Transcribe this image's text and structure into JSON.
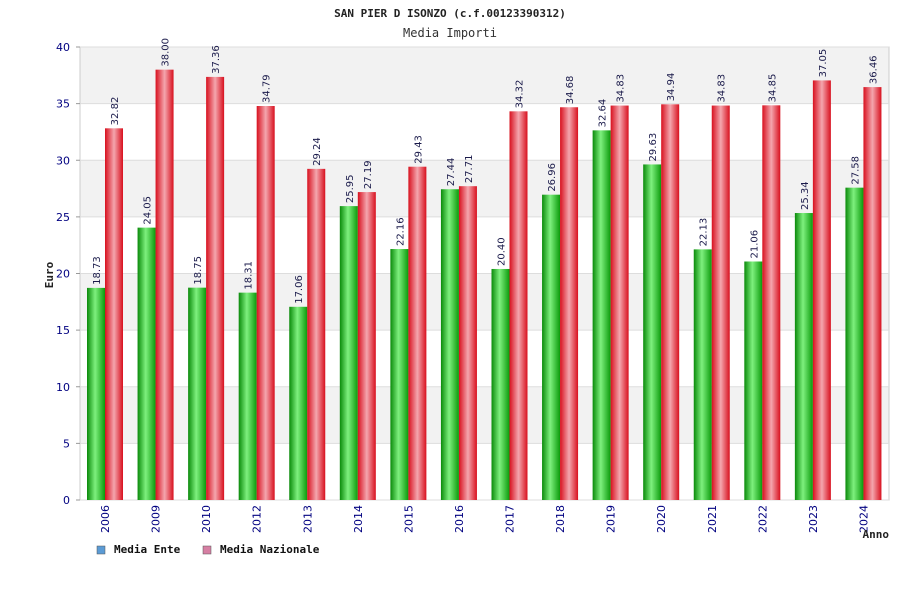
{
  "chart_data": {
    "type": "bar",
    "title": "SAN PIER D ISONZO (c.f.00123390312)",
    "subtitle": "Media Importi",
    "xlabel": "Anno",
    "ylabel": "Euro",
    "ylim": [
      0,
      40
    ],
    "yticks": [
      0,
      5,
      10,
      15,
      20,
      25,
      30,
      35,
      40
    ],
    "grid": true,
    "legend_position": "bottom-left",
    "categories": [
      "2006",
      "2009",
      "2010",
      "2012",
      "2013",
      "2014",
      "2015",
      "2016",
      "2017",
      "2018",
      "2019",
      "2020",
      "2021",
      "2022",
      "2023",
      "2024"
    ],
    "series": [
      {
        "name": "Media Ente",
        "color": "#22bb22",
        "legend_color": "#5b9bd5",
        "values": [
          18.73,
          24.05,
          18.75,
          18.31,
          17.06,
          25.95,
          22.16,
          27.44,
          20.4,
          26.96,
          32.64,
          29.63,
          22.13,
          21.06,
          25.34,
          27.58
        ],
        "labels": [
          "18.73",
          "24.05",
          "18.75",
          "18.31",
          "17.06",
          "25.95",
          "22.16",
          "27.44",
          "20.40",
          "26.96",
          "32.64",
          "29.63",
          "22.13",
          "21.06",
          "25.34",
          "27.58"
        ]
      },
      {
        "name": "Media Nazionale",
        "color": "#ee2233",
        "legend_color": "#d67fa3",
        "values": [
          32.82,
          38.0,
          37.36,
          34.79,
          29.24,
          27.19,
          29.43,
          27.71,
          34.32,
          34.68,
          34.83,
          34.94,
          34.83,
          34.85,
          37.05,
          36.46
        ],
        "labels": [
          "32.82",
          "38.00",
          "37.36",
          "34.79",
          "29.24",
          "27.19",
          "29.43",
          "27.71",
          "34.32",
          "34.68",
          "34.83",
          "34.94",
          "34.83",
          "34.85",
          "37.05",
          "36.46"
        ]
      }
    ]
  }
}
